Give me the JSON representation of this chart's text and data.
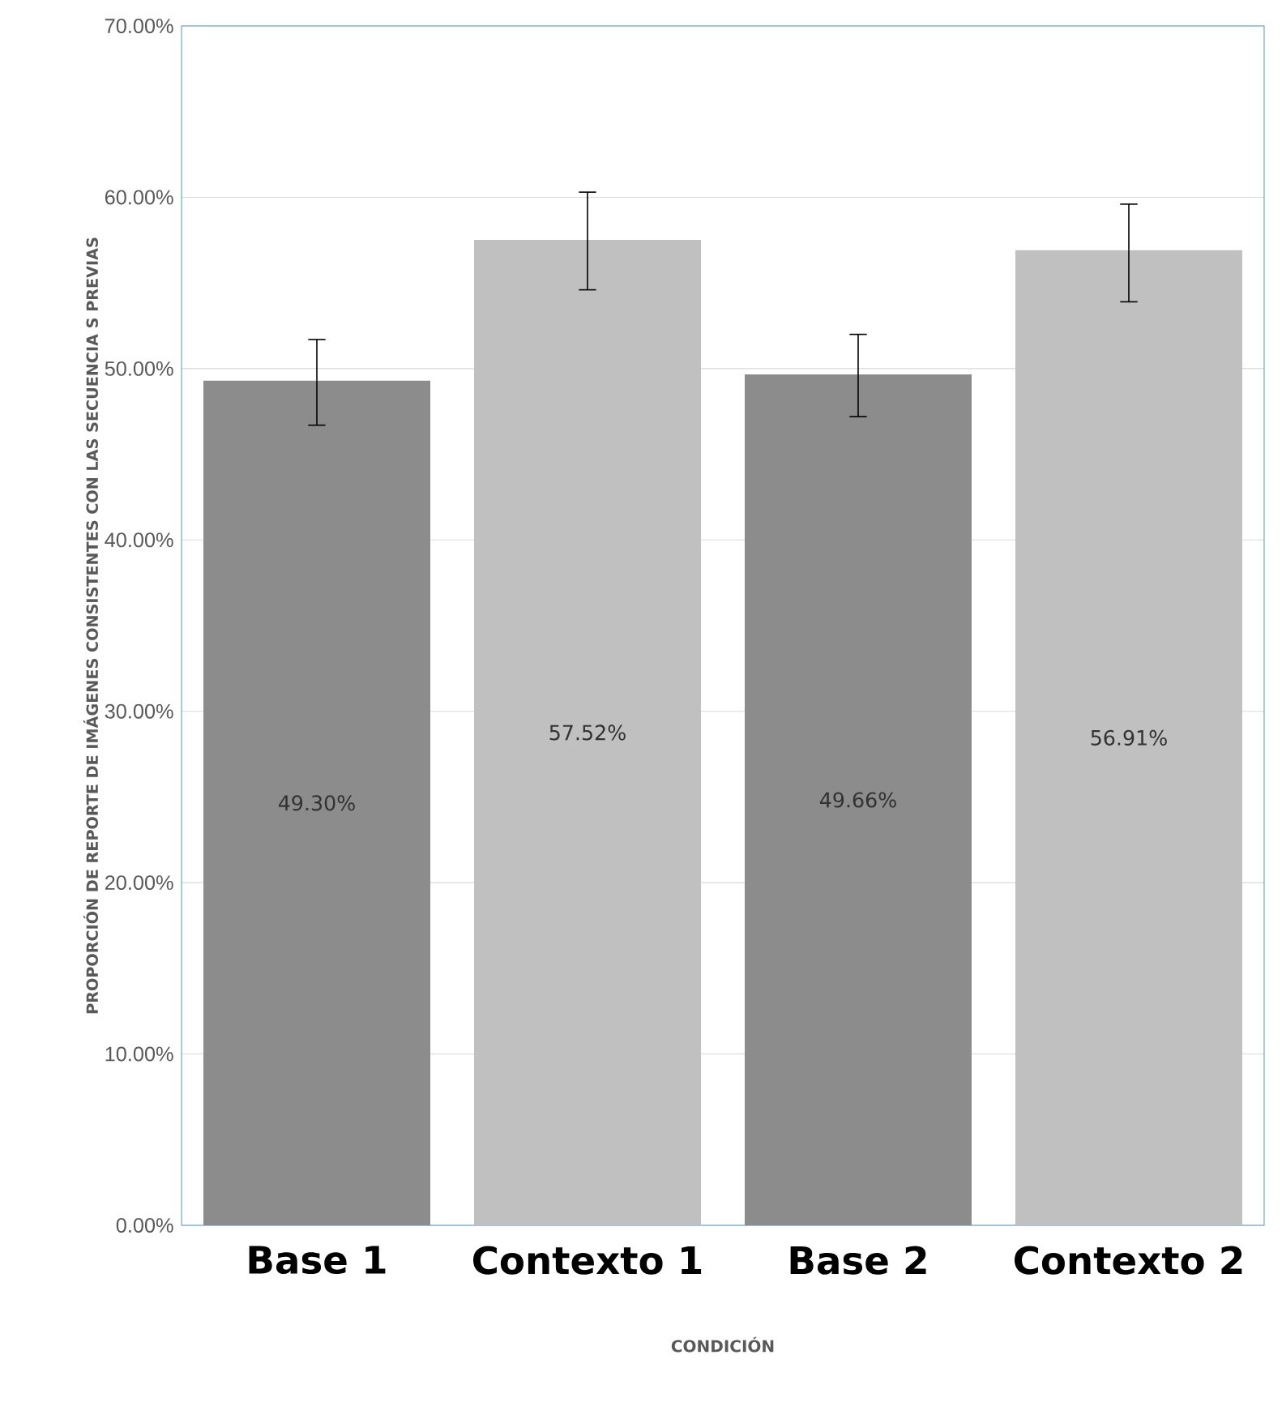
{
  "chart_data": {
    "type": "bar",
    "ylabel": "PROPORCIÓN DE REPORTE DE IMÁGENES CONSISTENTES CON LAS SECUENCIA S PREVIAS",
    "xlabel": "CONDICIÓN",
    "categories": [
      "Base 1",
      "Contexto 1",
      "Base 2",
      "Contexto 2"
    ],
    "values": [
      49.3,
      57.52,
      49.66,
      56.91
    ],
    "colors": [
      "#8c8c8c",
      "#c0c0c0",
      "#8c8c8c",
      "#c0c0c0"
    ],
    "errors": [
      [
        46.7,
        51.7
      ],
      [
        54.6,
        60.3
      ],
      [
        47.2,
        52.0
      ],
      [
        53.9,
        59.6
      ]
    ],
    "value_labels": [
      "49.30%",
      "57.52%",
      "49.66%",
      "56.91%"
    ],
    "ylim": [
      0,
      70
    ],
    "yticks": [
      {
        "value": 0,
        "label": "0.00%"
      },
      {
        "value": 10,
        "label": "10.00%"
      },
      {
        "value": 20,
        "label": "20.00%"
      },
      {
        "value": 30,
        "label": "30.00%"
      },
      {
        "value": 40,
        "label": "40.00%"
      },
      {
        "value": 50,
        "label": "50.00%"
      },
      {
        "value": 60,
        "label": "60.00%"
      },
      {
        "value": 70,
        "label": "70.00%"
      }
    ],
    "grid": "y"
  }
}
